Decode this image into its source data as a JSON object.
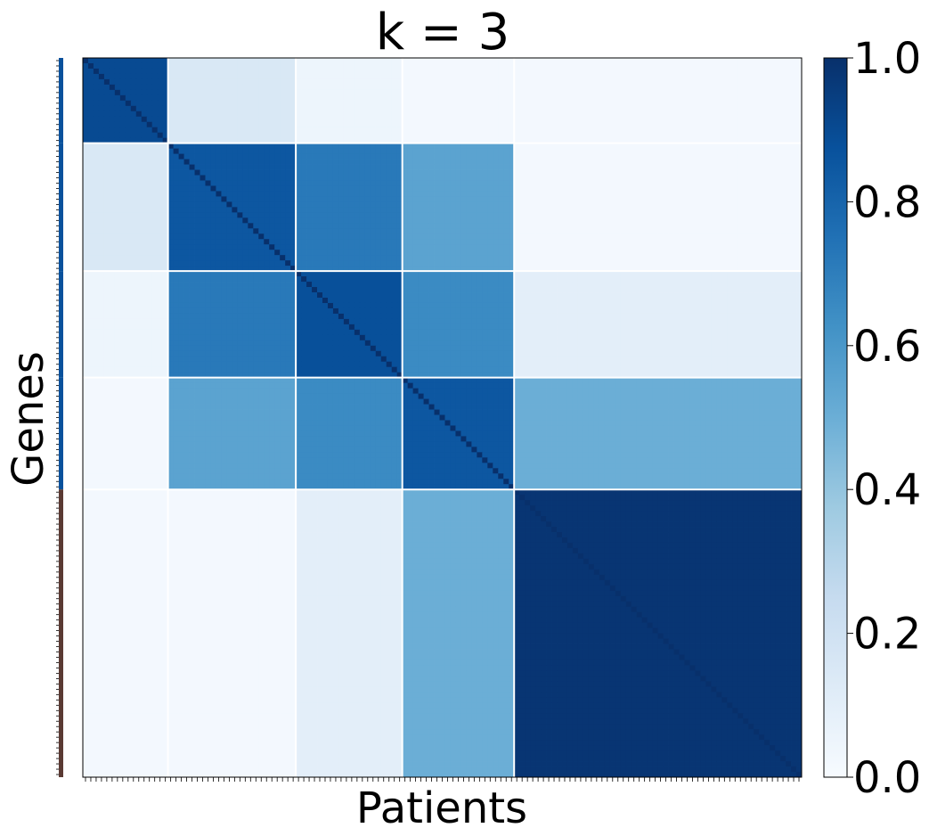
{
  "chart_data": {
    "type": "heatmap",
    "title": "k = 3",
    "xlabel": "Patients",
    "ylabel": "Genes",
    "colorbar": {
      "min": 0.0,
      "max": 1.0,
      "ticks": [
        "0.0",
        "0.2",
        "0.4",
        "0.6",
        "0.8",
        "1.0"
      ],
      "colormap": "Blues",
      "colors": [
        "#f7fbff",
        "#deebf7",
        "#c6dbef",
        "#9ecae1",
        "#6baed6",
        "#4292c6",
        "#2171b5",
        "#08519c",
        "#08306b"
      ]
    },
    "n_samples": 135,
    "cluster_sizes": [
      16,
      24,
      20,
      21,
      54
    ],
    "cluster_colors": [
      "#08519c",
      "#08519c",
      "#08519c",
      "#08519c",
      "#5a3a33"
    ],
    "mean_consensus_matrix": [
      [
        0.9,
        0.15,
        0.05,
        0.02,
        0.02
      ],
      [
        0.15,
        0.85,
        0.72,
        0.55,
        0.02
      ],
      [
        0.05,
        0.72,
        0.88,
        0.65,
        0.1
      ],
      [
        0.02,
        0.55,
        0.65,
        0.85,
        0.5
      ],
      [
        0.02,
        0.02,
        0.1,
        0.5,
        0.98
      ]
    ]
  }
}
